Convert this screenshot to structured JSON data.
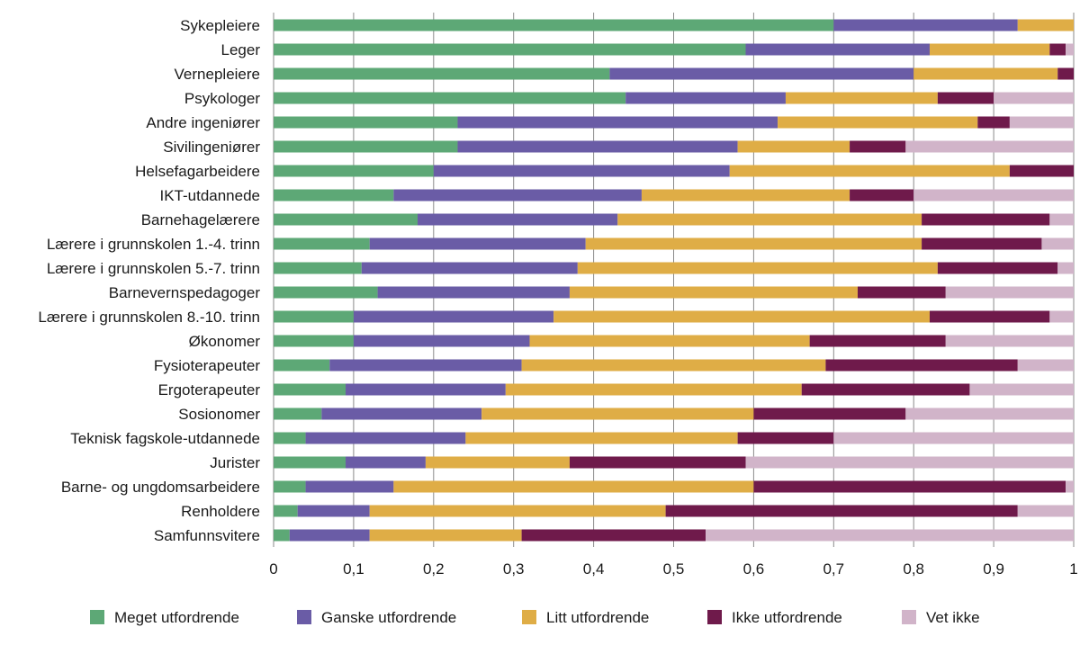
{
  "chart_data": {
    "type": "bar",
    "orientation": "horizontal",
    "stacked": true,
    "xlim": [
      0,
      1
    ],
    "xticks": [
      "0",
      "0,1",
      "0,2",
      "0,3",
      "0,4",
      "0,5",
      "0,6",
      "0,7",
      "0,8",
      "0,9",
      "1"
    ],
    "grid": "vertical",
    "legend_position": "bottom",
    "categories": [
      "Sykepleiere",
      "Leger",
      "Vernepleiere",
      "Psykologer",
      "Andre ingeniører",
      "Sivilingeniører",
      "Helsefagarbeidere",
      "IKT-utdannede",
      "Barnehagelærere",
      "Lærere i grunnskolen 1.-4. trinn",
      "Lærere i grunnskolen 5.-7. trinn",
      "Barnevernspedagoger",
      "Lærere i grunnskolen 8.-10. trinn",
      "Økonomer",
      "Fysioterapeuter",
      "Ergoterapeuter",
      "Sosionomer",
      "Teknisk fagskole-utdannede",
      "Jurister",
      "Barne- og ungdomsarbeidere",
      "Renholdere",
      "Samfunnsvitere"
    ],
    "series": [
      {
        "name": "Meget utfordrende",
        "color": "#5da876",
        "values": [
          0.7,
          0.59,
          0.42,
          0.44,
          0.23,
          0.23,
          0.2,
          0.15,
          0.18,
          0.12,
          0.11,
          0.13,
          0.1,
          0.1,
          0.07,
          0.09,
          0.06,
          0.04,
          0.09,
          0.04,
          0.03,
          0.02
        ]
      },
      {
        "name": "Ganske utfordrende",
        "color": "#6a5ca6",
        "values": [
          0.23,
          0.23,
          0.38,
          0.2,
          0.4,
          0.35,
          0.37,
          0.31,
          0.25,
          0.27,
          0.27,
          0.24,
          0.25,
          0.22,
          0.24,
          0.2,
          0.2,
          0.2,
          0.1,
          0.11,
          0.09,
          0.1
        ]
      },
      {
        "name": "Litt utfordrende",
        "color": "#dfad46",
        "values": [
          0.07,
          0.15,
          0.18,
          0.19,
          0.25,
          0.14,
          0.35,
          0.26,
          0.38,
          0.42,
          0.45,
          0.36,
          0.47,
          0.35,
          0.38,
          0.37,
          0.34,
          0.34,
          0.18,
          0.45,
          0.37,
          0.19
        ]
      },
      {
        "name": "Ikke utfordrende",
        "color": "#6f1a4b",
        "values": [
          0.0,
          0.02,
          0.02,
          0.07,
          0.04,
          0.07,
          0.08,
          0.08,
          0.16,
          0.15,
          0.15,
          0.11,
          0.15,
          0.17,
          0.24,
          0.21,
          0.19,
          0.12,
          0.22,
          0.39,
          0.44,
          0.23
        ]
      },
      {
        "name": "Vet ikke",
        "color": "#d1b4c9",
        "values": [
          0.0,
          0.01,
          0.0,
          0.11,
          0.08,
          0.21,
          0.0,
          0.2,
          0.03,
          0.04,
          0.02,
          0.16,
          0.03,
          0.16,
          0.07,
          0.13,
          0.21,
          0.3,
          0.41,
          0.01,
          0.07,
          0.46
        ]
      }
    ]
  }
}
